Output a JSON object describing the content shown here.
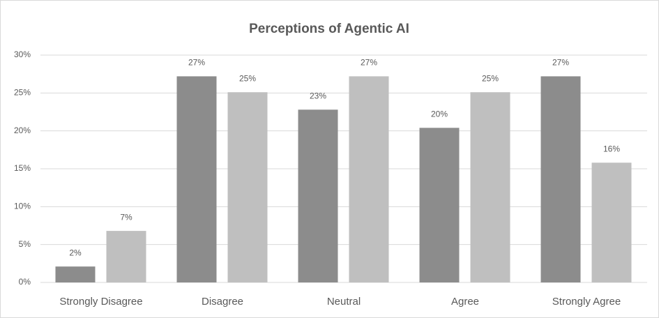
{
  "chart_data": {
    "type": "bar",
    "title": "Perceptions of Agentic AI",
    "categories": [
      "Strongly Disagree",
      "Disagree",
      "Neutral",
      "Agree",
      "Strongly Agree"
    ],
    "series": [
      {
        "color": "#8c8c8c",
        "values": [
          2.1,
          27.2,
          22.8,
          20.4,
          27.2
        ],
        "value_labels": [
          "2%",
          "27%",
          "23%",
          "20%",
          "27%"
        ]
      },
      {
        "color": "#bfbfbf",
        "values": [
          6.8,
          25.1,
          27.2,
          25.1,
          15.8
        ],
        "value_labels": [
          "7%",
          "25%",
          "27%",
          "25%",
          "16%"
        ]
      }
    ],
    "ylim": [
      0,
      30
    ],
    "yticks": [
      {
        "value": 0,
        "label": "0%"
      },
      {
        "value": 5,
        "label": "5%"
      },
      {
        "value": 10,
        "label": "10%"
      },
      {
        "value": 15,
        "label": "15%"
      },
      {
        "value": 20,
        "label": "20%"
      },
      {
        "value": 25,
        "label": "25%"
      },
      {
        "value": 30,
        "label": "30%"
      }
    ],
    "grid": true
  }
}
